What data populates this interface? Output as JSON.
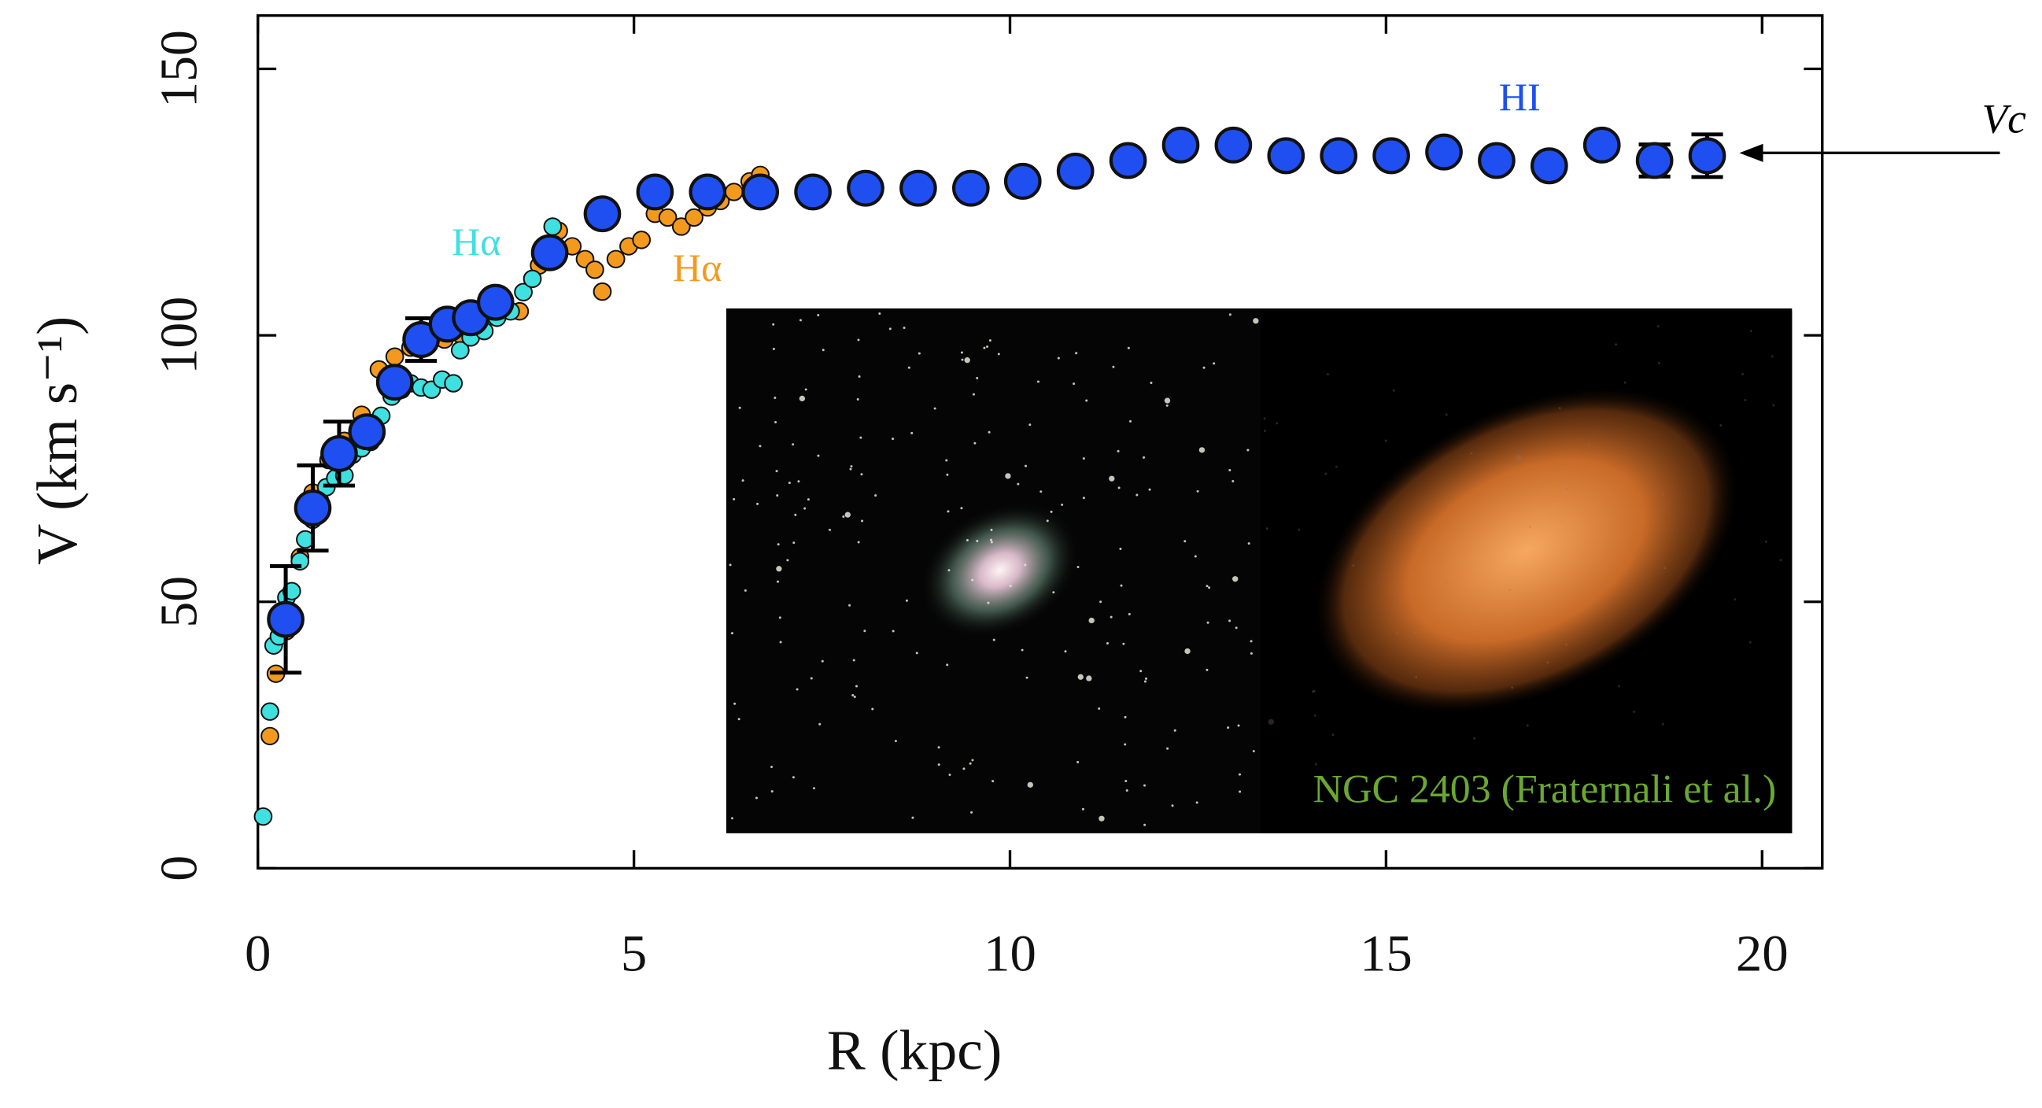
{
  "chart_data": {
    "type": "scatter",
    "x_label": "R (kpc)",
    "y_label": "V (km s⁻¹)",
    "xlim": [
      0,
      20.8
    ],
    "ylim": [
      0,
      160
    ],
    "xticks": [
      0,
      5,
      10,
      15,
      20
    ],
    "yticks": [
      0,
      50,
      100,
      150
    ],
    "series": [
      {
        "name": "HI",
        "color": "#1f4ff0",
        "x": [
          0.37,
          0.73,
          1.08,
          1.45,
          1.82,
          2.17,
          2.52,
          2.83,
          3.16,
          3.88,
          4.58,
          5.28,
          5.98,
          6.68,
          7.38,
          8.08,
          8.78,
          9.48,
          10.17,
          10.87,
          11.57,
          12.27,
          12.97,
          13.67,
          14.37,
          15.07,
          15.77,
          16.47,
          17.17,
          17.87,
          18.57,
          19.27
        ],
        "values": [
          46.7,
          67.6,
          77.8,
          81.9,
          91.2,
          99.2,
          102.1,
          103.3,
          106.2,
          115.5,
          122.8,
          126.9,
          126.9,
          126.9,
          126.9,
          127.6,
          127.6,
          127.6,
          128.9,
          130.8,
          132.8,
          135.7,
          135.7,
          133.7,
          133.7,
          133.7,
          134.4,
          132.8,
          131.8,
          135.7,
          132.8,
          133.7
        ],
        "errors": [
          10,
          8,
          6,
          null,
          null,
          4,
          null,
          null,
          null,
          null,
          null,
          null,
          null,
          null,
          null,
          null,
          null,
          null,
          null,
          null,
          null,
          null,
          null,
          null,
          null,
          null,
          null,
          null,
          null,
          null,
          3,
          4
        ]
      },
      {
        "name": "Hα",
        "color": "#3fe0e0",
        "x": [
          0.07,
          0.16,
          0.21,
          0.28,
          0.38,
          0.45,
          0.56,
          0.63,
          0.73,
          0.82,
          0.91,
          1.03,
          1.15,
          1.26,
          1.38,
          1.5,
          1.64,
          1.78,
          1.91,
          2.03,
          2.17,
          2.31,
          2.45,
          2.6,
          2.69,
          2.83,
          3.01,
          3.18,
          3.36,
          3.53,
          3.65,
          3.78,
          3.92
        ],
        "values": [
          9.7,
          29.4,
          41.8,
          43.5,
          50.8,
          52.0,
          57.6,
          61.7,
          65.4,
          69.1,
          71.5,
          73.2,
          73.7,
          77.6,
          78.8,
          80.0,
          84.9,
          88.5,
          89.8,
          91.0,
          90.2,
          89.8,
          91.7,
          91.0,
          97.2,
          99.6,
          100.8,
          103.3,
          104.5,
          108.1,
          110.6,
          114.4,
          120.4
        ]
      },
      {
        "name": "Hα",
        "color": "#f39a1e",
        "x": [
          0.16,
          0.24,
          0.38,
          0.56,
          0.73,
          0.94,
          1.15,
          1.38,
          1.61,
          1.82,
          2.03,
          2.26,
          2.48,
          2.69,
          2.95,
          3.22,
          3.48,
          3.74,
          4.0,
          4.18,
          4.35,
          4.48,
          4.58,
          4.76,
          4.93,
          5.1,
          5.28,
          5.45,
          5.63,
          5.8,
          5.98,
          6.15,
          6.33,
          6.54,
          6.68,
          6.8
        ],
        "values": [
          24.8,
          36.5,
          44.5,
          58.4,
          70.5,
          76.6,
          80.2,
          85.1,
          93.6,
          96.0,
          97.7,
          99.7,
          99.2,
          100.2,
          102.1,
          105.0,
          104.5,
          113.1,
          119.6,
          116.7,
          114.3,
          112.3,
          108.2,
          114.3,
          116.7,
          117.9,
          122.8,
          122.1,
          120.4,
          122.1,
          124.0,
          125.2,
          126.9,
          128.9,
          130.1,
          126.4
        ]
      }
    ],
    "annotations": [
      "Vc",
      "NGC 2403 (Fraternali et al.)"
    ]
  }
}
